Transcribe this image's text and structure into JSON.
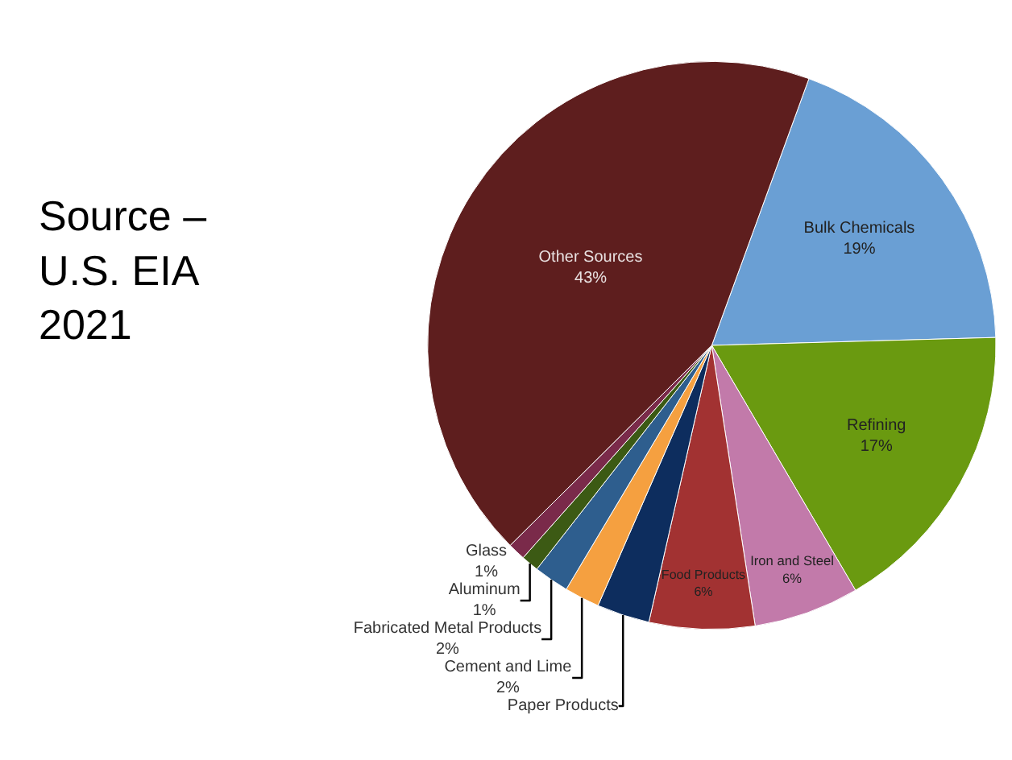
{
  "chart_data": {
    "type": "pie",
    "categories": [
      "Bulk Chemicals",
      "Refining",
      "Iron and Steel",
      "Food Products",
      "Paper Products",
      "Cement and Lime",
      "Fabricated Metal Products",
      "Aluminum",
      "Glass",
      "Other Sources"
    ],
    "values": [
      19,
      17,
      6,
      6,
      3,
      2,
      2,
      1,
      1,
      43
    ],
    "value_labels": [
      "19%",
      "17%",
      "6%",
      "6%",
      null,
      "2%",
      "2%",
      "1%",
      "1%",
      "43%"
    ],
    "colors": [
      "#6a9fd4",
      "#6a9a10",
      "#c27aaa",
      "#a23232",
      "#0d2d5e",
      "#f5a040",
      "#2e5e8e",
      "#3c5a14",
      "#7a2a4a",
      "#5e1e1e"
    ],
    "annotations": [
      "Source – U.S. EIA 2021"
    ],
    "legend": false
  }
}
